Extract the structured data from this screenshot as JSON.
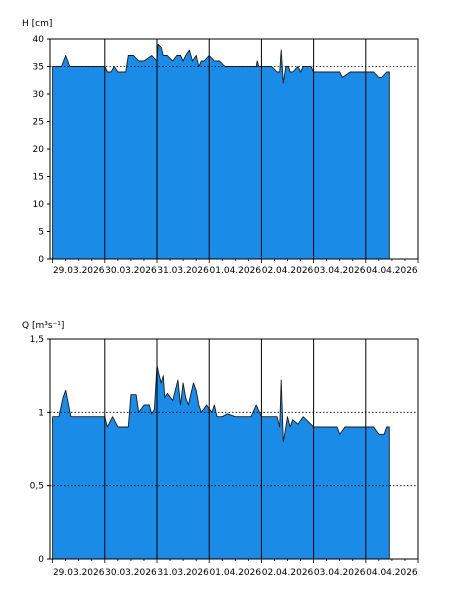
{
  "chart_data": [
    {
      "type": "area",
      "ylabel": "H [cm]",
      "ylim": [
        0,
        40
      ],
      "yticks": [
        0,
        5,
        10,
        15,
        20,
        25,
        30,
        35,
        40
      ],
      "ytick_labels": [
        "0",
        "5",
        "10",
        "15",
        "20",
        "25",
        "30",
        "35",
        "40"
      ],
      "gridlines_y": [
        35
      ],
      "x_date_labels": [
        "29.03.2026",
        "30.03.2026",
        "31.03.2026",
        "01.04.2026",
        "02.04.2026",
        "03.04.2026",
        "04.04.2026"
      ],
      "x_range_days": [
        -0.05,
        7.0
      ],
      "fill_color": "#1a8ce8",
      "series": [
        {
          "x": [
            0.0,
            0.17,
            0.25,
            0.33,
            0.45,
            0.6,
            0.9,
            1.0,
            1.05,
            1.12,
            1.18,
            1.25,
            1.4,
            1.45,
            1.55,
            1.65,
            1.75,
            1.9,
            2.0,
            2.02,
            2.08,
            2.12,
            2.2,
            2.3,
            2.38,
            2.45,
            2.5,
            2.55,
            2.62,
            2.68,
            2.75,
            2.8,
            2.85,
            2.9,
            3.0,
            3.1,
            3.2,
            3.3,
            3.55,
            3.8,
            3.9,
            3.92,
            3.95,
            4.0,
            4.2,
            4.3,
            4.35,
            4.38,
            4.42,
            4.47,
            4.5,
            4.52,
            4.55,
            4.6,
            4.7,
            4.75,
            4.8,
            4.95,
            5.0,
            5.3,
            5.45,
            5.5,
            5.55,
            5.7,
            5.8,
            5.95,
            6.15,
            6.25,
            6.3,
            6.4,
            6.45
          ],
          "y": [
            35,
            35,
            37,
            35,
            35,
            35,
            35,
            35,
            34,
            34,
            35,
            34,
            34,
            37,
            37,
            36,
            36,
            37,
            36,
            39,
            38.5,
            37,
            37,
            36,
            37,
            37,
            36,
            37,
            38,
            36,
            37,
            35,
            36,
            36,
            37,
            36,
            36,
            35,
            35,
            35,
            35,
            36,
            35,
            35,
            35,
            34,
            34,
            38,
            32,
            35,
            35,
            35,
            34,
            34,
            35,
            34,
            35,
            35,
            34,
            34,
            34,
            34,
            33,
            34,
            34,
            34,
            34,
            33,
            33,
            34,
            34
          ]
        }
      ]
    },
    {
      "type": "area",
      "ylabel": "Q [m³s⁻¹]",
      "ylim": [
        0,
        1.5
      ],
      "yticks": [
        0,
        0.5,
        1.0,
        1.5
      ],
      "ytick_labels": [
        "0",
        "0,5",
        "1",
        "1,5"
      ],
      "gridlines_y": [
        1.0,
        0.5
      ],
      "x_date_labels": [
        "29.03.2026",
        "30.03.2026",
        "31.03.2026",
        "01.04.2026",
        "02.04.2026",
        "03.04.2026",
        "04.04.2026"
      ],
      "x_range_days": [
        -0.05,
        7.0
      ],
      "fill_color": "#1a8ce8",
      "series": [
        {
          "x": [
            0.0,
            0.12,
            0.2,
            0.25,
            0.35,
            0.5,
            0.9,
            1.0,
            1.05,
            1.15,
            1.25,
            1.45,
            1.5,
            1.6,
            1.65,
            1.75,
            1.85,
            1.9,
            1.95,
            2.0,
            2.03,
            2.08,
            2.12,
            2.15,
            2.2,
            2.3,
            2.4,
            2.45,
            2.5,
            2.55,
            2.6,
            2.7,
            2.75,
            2.8,
            2.85,
            2.95,
            3.05,
            3.1,
            3.15,
            3.25,
            3.35,
            3.5,
            3.8,
            3.9,
            4.0,
            4.3,
            4.35,
            4.38,
            4.42,
            4.47,
            4.5,
            4.55,
            4.6,
            4.7,
            4.8,
            5.0,
            5.3,
            5.45,
            5.5,
            5.6,
            5.9,
            6.0,
            6.15,
            6.25,
            6.35,
            6.4,
            6.45
          ],
          "y": [
            0.97,
            0.97,
            1.1,
            1.15,
            0.97,
            0.97,
            0.97,
            0.97,
            0.9,
            0.97,
            0.9,
            0.9,
            1.12,
            1.12,
            1.0,
            1.05,
            1.05,
            0.99,
            1.02,
            1.32,
            1.27,
            1.2,
            1.25,
            1.1,
            1.13,
            1.08,
            1.22,
            1.05,
            1.2,
            1.1,
            1.05,
            1.2,
            1.15,
            1.05,
            1.0,
            1.05,
            1.0,
            1.05,
            0.97,
            0.97,
            0.99,
            0.97,
            0.97,
            1.05,
            0.97,
            0.97,
            0.9,
            1.22,
            0.8,
            0.9,
            0.97,
            0.9,
            0.95,
            0.92,
            0.97,
            0.9,
            0.9,
            0.9,
            0.85,
            0.9,
            0.9,
            0.9,
            0.9,
            0.85,
            0.85,
            0.9,
            0.9
          ]
        }
      ]
    }
  ]
}
